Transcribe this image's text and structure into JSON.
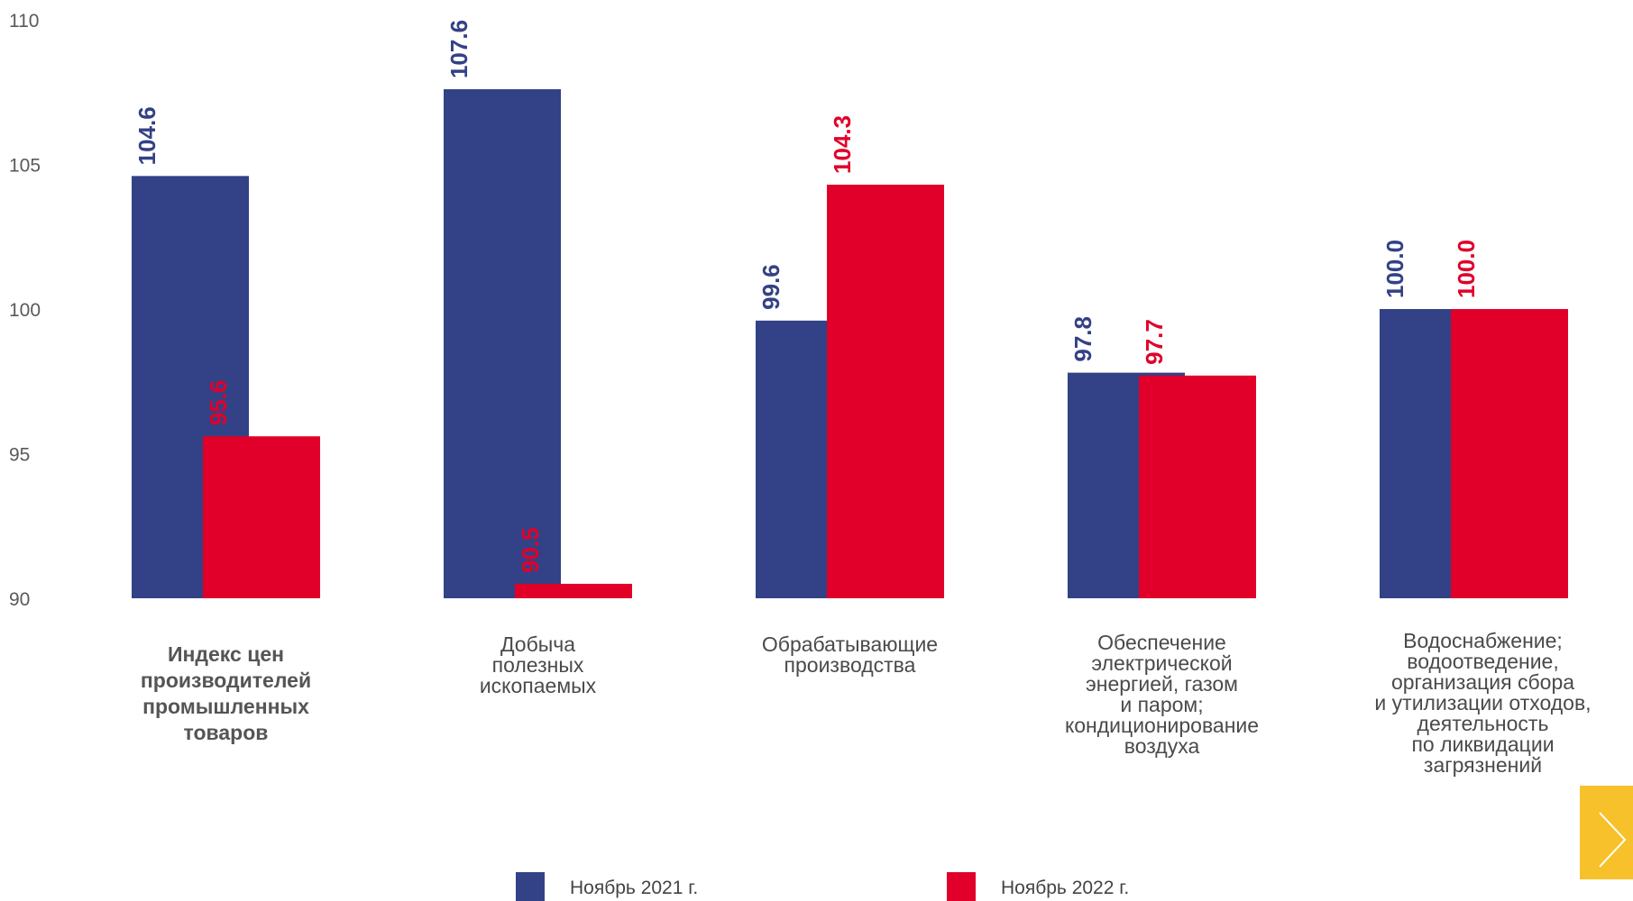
{
  "chart_data": {
    "type": "bar",
    "categories": [
      [
        "Индекс цен",
        "производителей",
        "промышленных",
        "товаров"
      ],
      [
        "Добыча",
        "полезных",
        "ископаемых"
      ],
      [
        "Обрабатывающие",
        "производства"
      ],
      [
        "Обеспечение",
        "электрической",
        "энергией, газом",
        "и паром;",
        "кондиционирование",
        "воздуха"
      ],
      [
        "Водоснабжение;",
        "водоотведение,",
        "организация сбора",
        "и утилизации отходов,",
        "деятельность",
        "по ликвидации",
        "загрязнений"
      ]
    ],
    "series": [
      {
        "name": "Ноябрь 2021 г.",
        "color": "#334186",
        "values": [
          104.6,
          107.6,
          99.6,
          97.8,
          100.0
        ],
        "labels": [
          "104.6",
          "107.6",
          "99.6",
          "97.8",
          "100.0"
        ]
      },
      {
        "name": "Ноябрь 2022 г.",
        "color": "#e0002a",
        "values": [
          95.6,
          90.5,
          104.3,
          97.7,
          100.0
        ],
        "labels": [
          "95.6",
          "90.5",
          "104.3",
          "97.7",
          "100.0"
        ]
      }
    ],
    "ylim": [
      90,
      110
    ],
    "yticks": [
      "90",
      "95",
      "100",
      "105",
      "110"
    ],
    "grid": false,
    "legend_position": "bottom"
  },
  "ui": {
    "next_button_icon": "chevron-right-icon"
  }
}
